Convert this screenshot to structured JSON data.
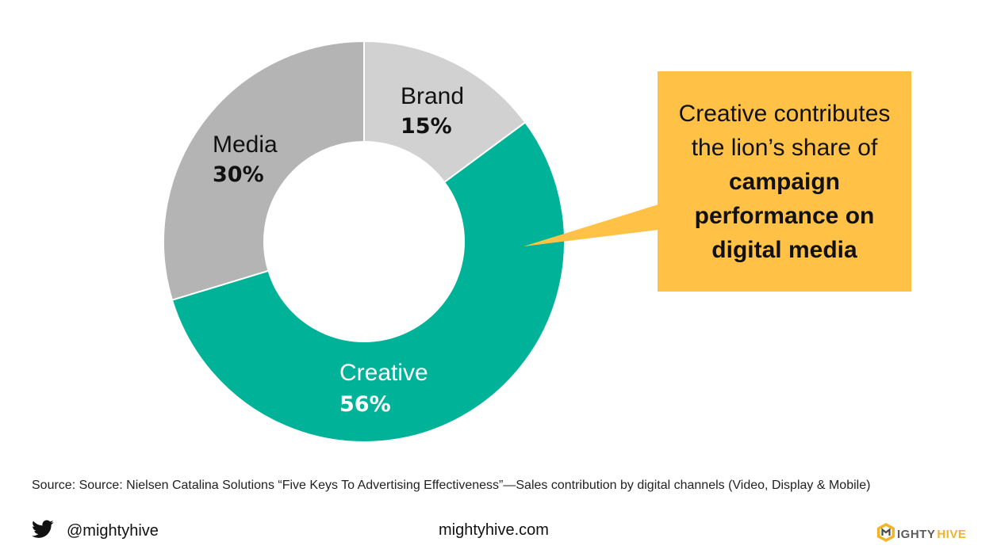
{
  "chart_data": {
    "type": "pie",
    "variant": "donut",
    "slices": [
      {
        "label": "Brand",
        "value": 15,
        "display": "15%",
        "color": "#d1d1d1",
        "text_color": "#111111"
      },
      {
        "label": "Creative",
        "value": 56,
        "display": "56%",
        "color": "#00b398",
        "text_color": "#ffffff"
      },
      {
        "label": "Media",
        "value": 30,
        "display": "30%",
        "color": "#b4b4b4",
        "text_color": "#111111"
      }
    ]
  },
  "callout": {
    "line1": "Creative contributes",
    "line2": "the lion’s share of",
    "bold1": "campaign",
    "bold2": "performance on",
    "bold3": "digital media",
    "color": "#ffc247"
  },
  "source": "Source: Source: Nielsen Catalina Solutions “Five Keys To Advertising Effectiveness”—Sales contribution by digital channels (Video, Display & Mobile)",
  "footer": {
    "twitter_icon": "twitter-bird-icon",
    "handle": "@mightyhive",
    "website": "mightyhive.com",
    "logo_icon": "hexagon-icon",
    "logo_part1": "IGHTY",
    "logo_part2": "HIVE"
  }
}
